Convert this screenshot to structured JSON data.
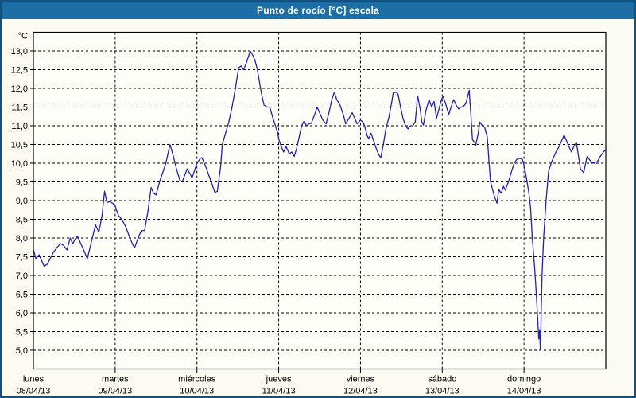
{
  "window": {
    "title": "Punto de rocío [°C] escala"
  },
  "colors": {
    "titlebar": "#1c6ea5",
    "outer_border": "#14517c",
    "background": "#fbfbf2",
    "plot_background": "#fefef8",
    "grid": "#000000",
    "axis": "#000000",
    "text": "#000000",
    "line": "#2222aa"
  },
  "chart_data": {
    "type": "line",
    "title": "Punto de rocío [°C] escala",
    "ylabel": "°C",
    "xlabel": "",
    "legend": "none",
    "grid": "dashed",
    "ylim": [
      4.5,
      13.5
    ],
    "xlim_days": [
      0,
      7
    ],
    "y_ticks": [
      13.0,
      12.5,
      12.0,
      11.5,
      11.0,
      10.5,
      10.0,
      9.5,
      9.0,
      8.5,
      8.0,
      7.5,
      7.0,
      6.5,
      6.0,
      5.5,
      5.0
    ],
    "y_tick_labels": [
      "13,0",
      "12,5",
      "12,0",
      "11,5",
      "11,0",
      "10,5",
      "10,0",
      "9,5",
      "9,0",
      "8,5",
      "8,0",
      "7,5",
      "7,0",
      "6,5",
      "6,0",
      "5,5",
      "5,0"
    ],
    "x_axis": {
      "days": [
        {
          "name": "lunes",
          "date": "08/04/13"
        },
        {
          "name": "martes",
          "date": "09/04/13"
        },
        {
          "name": "miércoles",
          "date": "10/04/13"
        },
        {
          "name": "jueves",
          "date": "11/04/13"
        },
        {
          "name": "viernes",
          "date": "12/04/13"
        },
        {
          "name": "sábado",
          "date": "13/04/13"
        },
        {
          "name": "domingo",
          "date": "14/04/13"
        }
      ]
    },
    "series": [
      {
        "name": "Punto de rocío",
        "unit": "°C",
        "points": [
          [
            0.0,
            7.7
          ],
          [
            0.03,
            7.45
          ],
          [
            0.07,
            7.55
          ],
          [
            0.13,
            7.25
          ],
          [
            0.17,
            7.3
          ],
          [
            0.24,
            7.6
          ],
          [
            0.29,
            7.75
          ],
          [
            0.33,
            7.85
          ],
          [
            0.37,
            7.8
          ],
          [
            0.41,
            7.68
          ],
          [
            0.45,
            8.0
          ],
          [
            0.48,
            7.85
          ],
          [
            0.51,
            7.97
          ],
          [
            0.54,
            8.05
          ],
          [
            0.57,
            7.9
          ],
          [
            0.62,
            7.65
          ],
          [
            0.66,
            7.45
          ],
          [
            0.71,
            7.9
          ],
          [
            0.76,
            8.35
          ],
          [
            0.8,
            8.15
          ],
          [
            0.84,
            8.6
          ],
          [
            0.87,
            9.25
          ],
          [
            0.9,
            8.95
          ],
          [
            0.93,
            8.97
          ],
          [
            0.97,
            8.93
          ],
          [
            1.0,
            8.85
          ],
          [
            1.04,
            8.6
          ],
          [
            1.08,
            8.5
          ],
          [
            1.13,
            8.3
          ],
          [
            1.18,
            8.0
          ],
          [
            1.22,
            7.8
          ],
          [
            1.24,
            7.75
          ],
          [
            1.28,
            8.0
          ],
          [
            1.32,
            8.2
          ],
          [
            1.36,
            8.2
          ],
          [
            1.4,
            8.7
          ],
          [
            1.44,
            9.35
          ],
          [
            1.47,
            9.2
          ],
          [
            1.5,
            9.15
          ],
          [
            1.55,
            9.55
          ],
          [
            1.59,
            9.8
          ],
          [
            1.62,
            10.0
          ],
          [
            1.67,
            10.5
          ],
          [
            1.71,
            10.2
          ],
          [
            1.75,
            9.85
          ],
          [
            1.79,
            9.55
          ],
          [
            1.82,
            9.5
          ],
          [
            1.88,
            9.85
          ],
          [
            1.92,
            9.7
          ],
          [
            1.94,
            9.6
          ],
          [
            1.97,
            9.8
          ],
          [
            2.0,
            10.0
          ],
          [
            2.04,
            10.12
          ],
          [
            2.06,
            10.15
          ],
          [
            2.11,
            9.9
          ],
          [
            2.15,
            9.65
          ],
          [
            2.19,
            9.4
          ],
          [
            2.22,
            9.22
          ],
          [
            2.25,
            9.25
          ],
          [
            2.29,
            9.9
          ],
          [
            2.31,
            10.5
          ],
          [
            2.35,
            10.8
          ],
          [
            2.39,
            11.1
          ],
          [
            2.43,
            11.5
          ],
          [
            2.47,
            12.0
          ],
          [
            2.51,
            12.55
          ],
          [
            2.54,
            12.6
          ],
          [
            2.57,
            12.5
          ],
          [
            2.6,
            12.65
          ],
          [
            2.63,
            12.85
          ],
          [
            2.65,
            13.0
          ],
          [
            2.68,
            12.9
          ],
          [
            2.71,
            12.75
          ],
          [
            2.74,
            12.5
          ],
          [
            2.77,
            12.1
          ],
          [
            2.79,
            11.85
          ],
          [
            2.82,
            11.55
          ],
          [
            2.86,
            11.5
          ],
          [
            2.89,
            11.5
          ],
          [
            2.93,
            11.2
          ],
          [
            2.96,
            11.0
          ],
          [
            2.99,
            10.8
          ],
          [
            3.0,
            10.65
          ],
          [
            3.03,
            10.45
          ],
          [
            3.06,
            10.3
          ],
          [
            3.09,
            10.45
          ],
          [
            3.13,
            10.25
          ],
          [
            3.16,
            10.3
          ],
          [
            3.19,
            10.18
          ],
          [
            3.22,
            10.4
          ],
          [
            3.25,
            10.7
          ],
          [
            3.28,
            11.0
          ],
          [
            3.31,
            11.13
          ],
          [
            3.34,
            11.0
          ],
          [
            3.37,
            11.05
          ],
          [
            3.4,
            11.07
          ],
          [
            3.44,
            11.3
          ],
          [
            3.47,
            11.5
          ],
          [
            3.5,
            11.35
          ],
          [
            3.54,
            11.15
          ],
          [
            3.58,
            11.05
          ],
          [
            3.62,
            11.4
          ],
          [
            3.65,
            11.7
          ],
          [
            3.68,
            11.9
          ],
          [
            3.71,
            11.7
          ],
          [
            3.75,
            11.55
          ],
          [
            3.79,
            11.3
          ],
          [
            3.82,
            11.05
          ],
          [
            3.86,
            11.2
          ],
          [
            3.9,
            11.35
          ],
          [
            3.93,
            11.2
          ],
          [
            3.96,
            11.05
          ],
          [
            4.0,
            11.15
          ],
          [
            4.03,
            11.1
          ],
          [
            4.05,
            11.0
          ],
          [
            4.08,
            10.75
          ],
          [
            4.1,
            10.65
          ],
          [
            4.13,
            10.8
          ],
          [
            4.16,
            10.6
          ],
          [
            4.2,
            10.35
          ],
          [
            4.23,
            10.2
          ],
          [
            4.25,
            10.15
          ],
          [
            4.28,
            10.5
          ],
          [
            4.31,
            10.9
          ],
          [
            4.35,
            11.25
          ],
          [
            4.38,
            11.6
          ],
          [
            4.4,
            11.88
          ],
          [
            4.43,
            11.9
          ],
          [
            4.46,
            11.85
          ],
          [
            4.49,
            11.5
          ],
          [
            4.52,
            11.2
          ],
          [
            4.55,
            11.0
          ],
          [
            4.58,
            10.92
          ],
          [
            4.61,
            11.0
          ],
          [
            4.64,
            11.0
          ],
          [
            4.67,
            11.1
          ],
          [
            4.7,
            11.8
          ],
          [
            4.73,
            11.45
          ],
          [
            4.75,
            11.1
          ],
          [
            4.77,
            11.02
          ],
          [
            4.8,
            11.4
          ],
          [
            4.84,
            11.7
          ],
          [
            4.87,
            11.5
          ],
          [
            4.9,
            11.65
          ],
          [
            4.93,
            11.2
          ],
          [
            4.96,
            11.45
          ],
          [
            4.99,
            11.7
          ],
          [
            5.01,
            11.78
          ],
          [
            5.04,
            11.6
          ],
          [
            5.08,
            11.3
          ],
          [
            5.1,
            11.45
          ],
          [
            5.14,
            11.7
          ],
          [
            5.17,
            11.55
          ],
          [
            5.2,
            11.45
          ],
          [
            5.23,
            11.5
          ],
          [
            5.26,
            11.52
          ],
          [
            5.29,
            11.6
          ],
          [
            5.33,
            11.95
          ],
          [
            5.35,
            11.3
          ],
          [
            5.37,
            10.63
          ],
          [
            5.4,
            10.55
          ],
          [
            5.41,
            10.48
          ],
          [
            5.44,
            10.8
          ],
          [
            5.46,
            11.1
          ],
          [
            5.49,
            11.0
          ],
          [
            5.52,
            10.95
          ],
          [
            5.55,
            10.7
          ],
          [
            5.57,
            10.1
          ],
          [
            5.59,
            9.5
          ],
          [
            5.64,
            9.1
          ],
          [
            5.67,
            8.93
          ],
          [
            5.69,
            9.3
          ],
          [
            5.72,
            9.2
          ],
          [
            5.75,
            9.38
          ],
          [
            5.77,
            9.28
          ],
          [
            5.81,
            9.5
          ],
          [
            5.85,
            9.8
          ],
          [
            5.88,
            10.0
          ],
          [
            5.91,
            10.1
          ],
          [
            5.95,
            10.13
          ],
          [
            5.98,
            10.1
          ],
          [
            6.0,
            9.95
          ],
          [
            6.03,
            9.6
          ],
          [
            6.06,
            9.2
          ],
          [
            6.08,
            8.8
          ],
          [
            6.1,
            8.05
          ],
          [
            6.13,
            7.2
          ],
          [
            6.15,
            6.5
          ],
          [
            6.17,
            5.73
          ],
          [
            6.18,
            5.3
          ],
          [
            6.19,
            5.55
          ],
          [
            6.2,
            5.0
          ],
          [
            6.22,
            7.0
          ],
          [
            6.24,
            8.0
          ],
          [
            6.27,
            9.0
          ],
          [
            6.3,
            9.78
          ],
          [
            6.34,
            10.05
          ],
          [
            6.39,
            10.3
          ],
          [
            6.43,
            10.45
          ],
          [
            6.46,
            10.6
          ],
          [
            6.49,
            10.75
          ],
          [
            6.52,
            10.6
          ],
          [
            6.54,
            10.48
          ],
          [
            6.58,
            10.3
          ],
          [
            6.61,
            10.45
          ],
          [
            6.64,
            10.55
          ],
          [
            6.69,
            9.85
          ],
          [
            6.73,
            9.75
          ],
          [
            6.77,
            10.17
          ],
          [
            6.8,
            10.1
          ],
          [
            6.82,
            10.03
          ],
          [
            6.86,
            10.0
          ],
          [
            6.9,
            10.05
          ],
          [
            6.93,
            10.17
          ],
          [
            6.97,
            10.3
          ],
          [
            7.0,
            10.35
          ]
        ]
      }
    ]
  }
}
